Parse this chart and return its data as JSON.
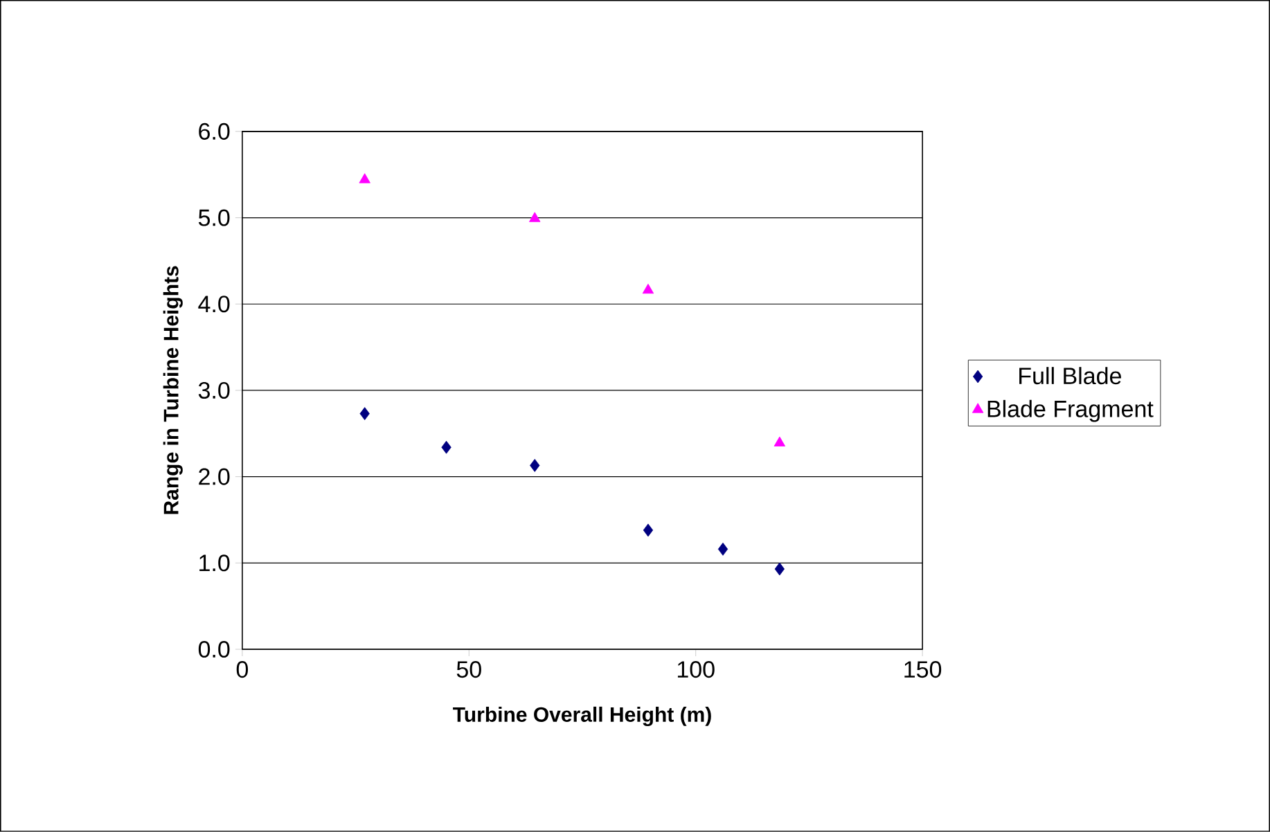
{
  "chart_data": {
    "type": "scatter",
    "xlabel": "Turbine Overall Height (m)",
    "ylabel": "Range in Turbine Heights",
    "xlim": [
      0,
      150
    ],
    "xticks": [
      0,
      50,
      100,
      150
    ],
    "ylim": [
      0,
      6
    ],
    "yticks": [
      {
        "value": 0,
        "label": "0.0"
      },
      {
        "value": 1,
        "label": "1.0"
      },
      {
        "value": 2,
        "label": "2.0"
      },
      {
        "value": 3,
        "label": "3.0"
      },
      {
        "value": 4,
        "label": "4.0"
      },
      {
        "value": 5,
        "label": "5.0"
      },
      {
        "value": 6,
        "label": "6.0"
      }
    ],
    "grid": "y",
    "legend": "right",
    "series": [
      {
        "name": "Full Blade",
        "color": "#000080",
        "marker": "diamond",
        "x": [
          27,
          45,
          64.5,
          89.5,
          106,
          118.5
        ],
        "values": [
          2.73,
          2.34,
          2.13,
          1.38,
          1.16,
          0.93
        ]
      },
      {
        "name": "Blade Fragment",
        "color": "#ff00ff",
        "marker": "triangle",
        "x": [
          27,
          64.5,
          89.5,
          118.5
        ],
        "values": [
          5.44,
          4.99,
          4.16,
          2.39
        ]
      }
    ]
  }
}
